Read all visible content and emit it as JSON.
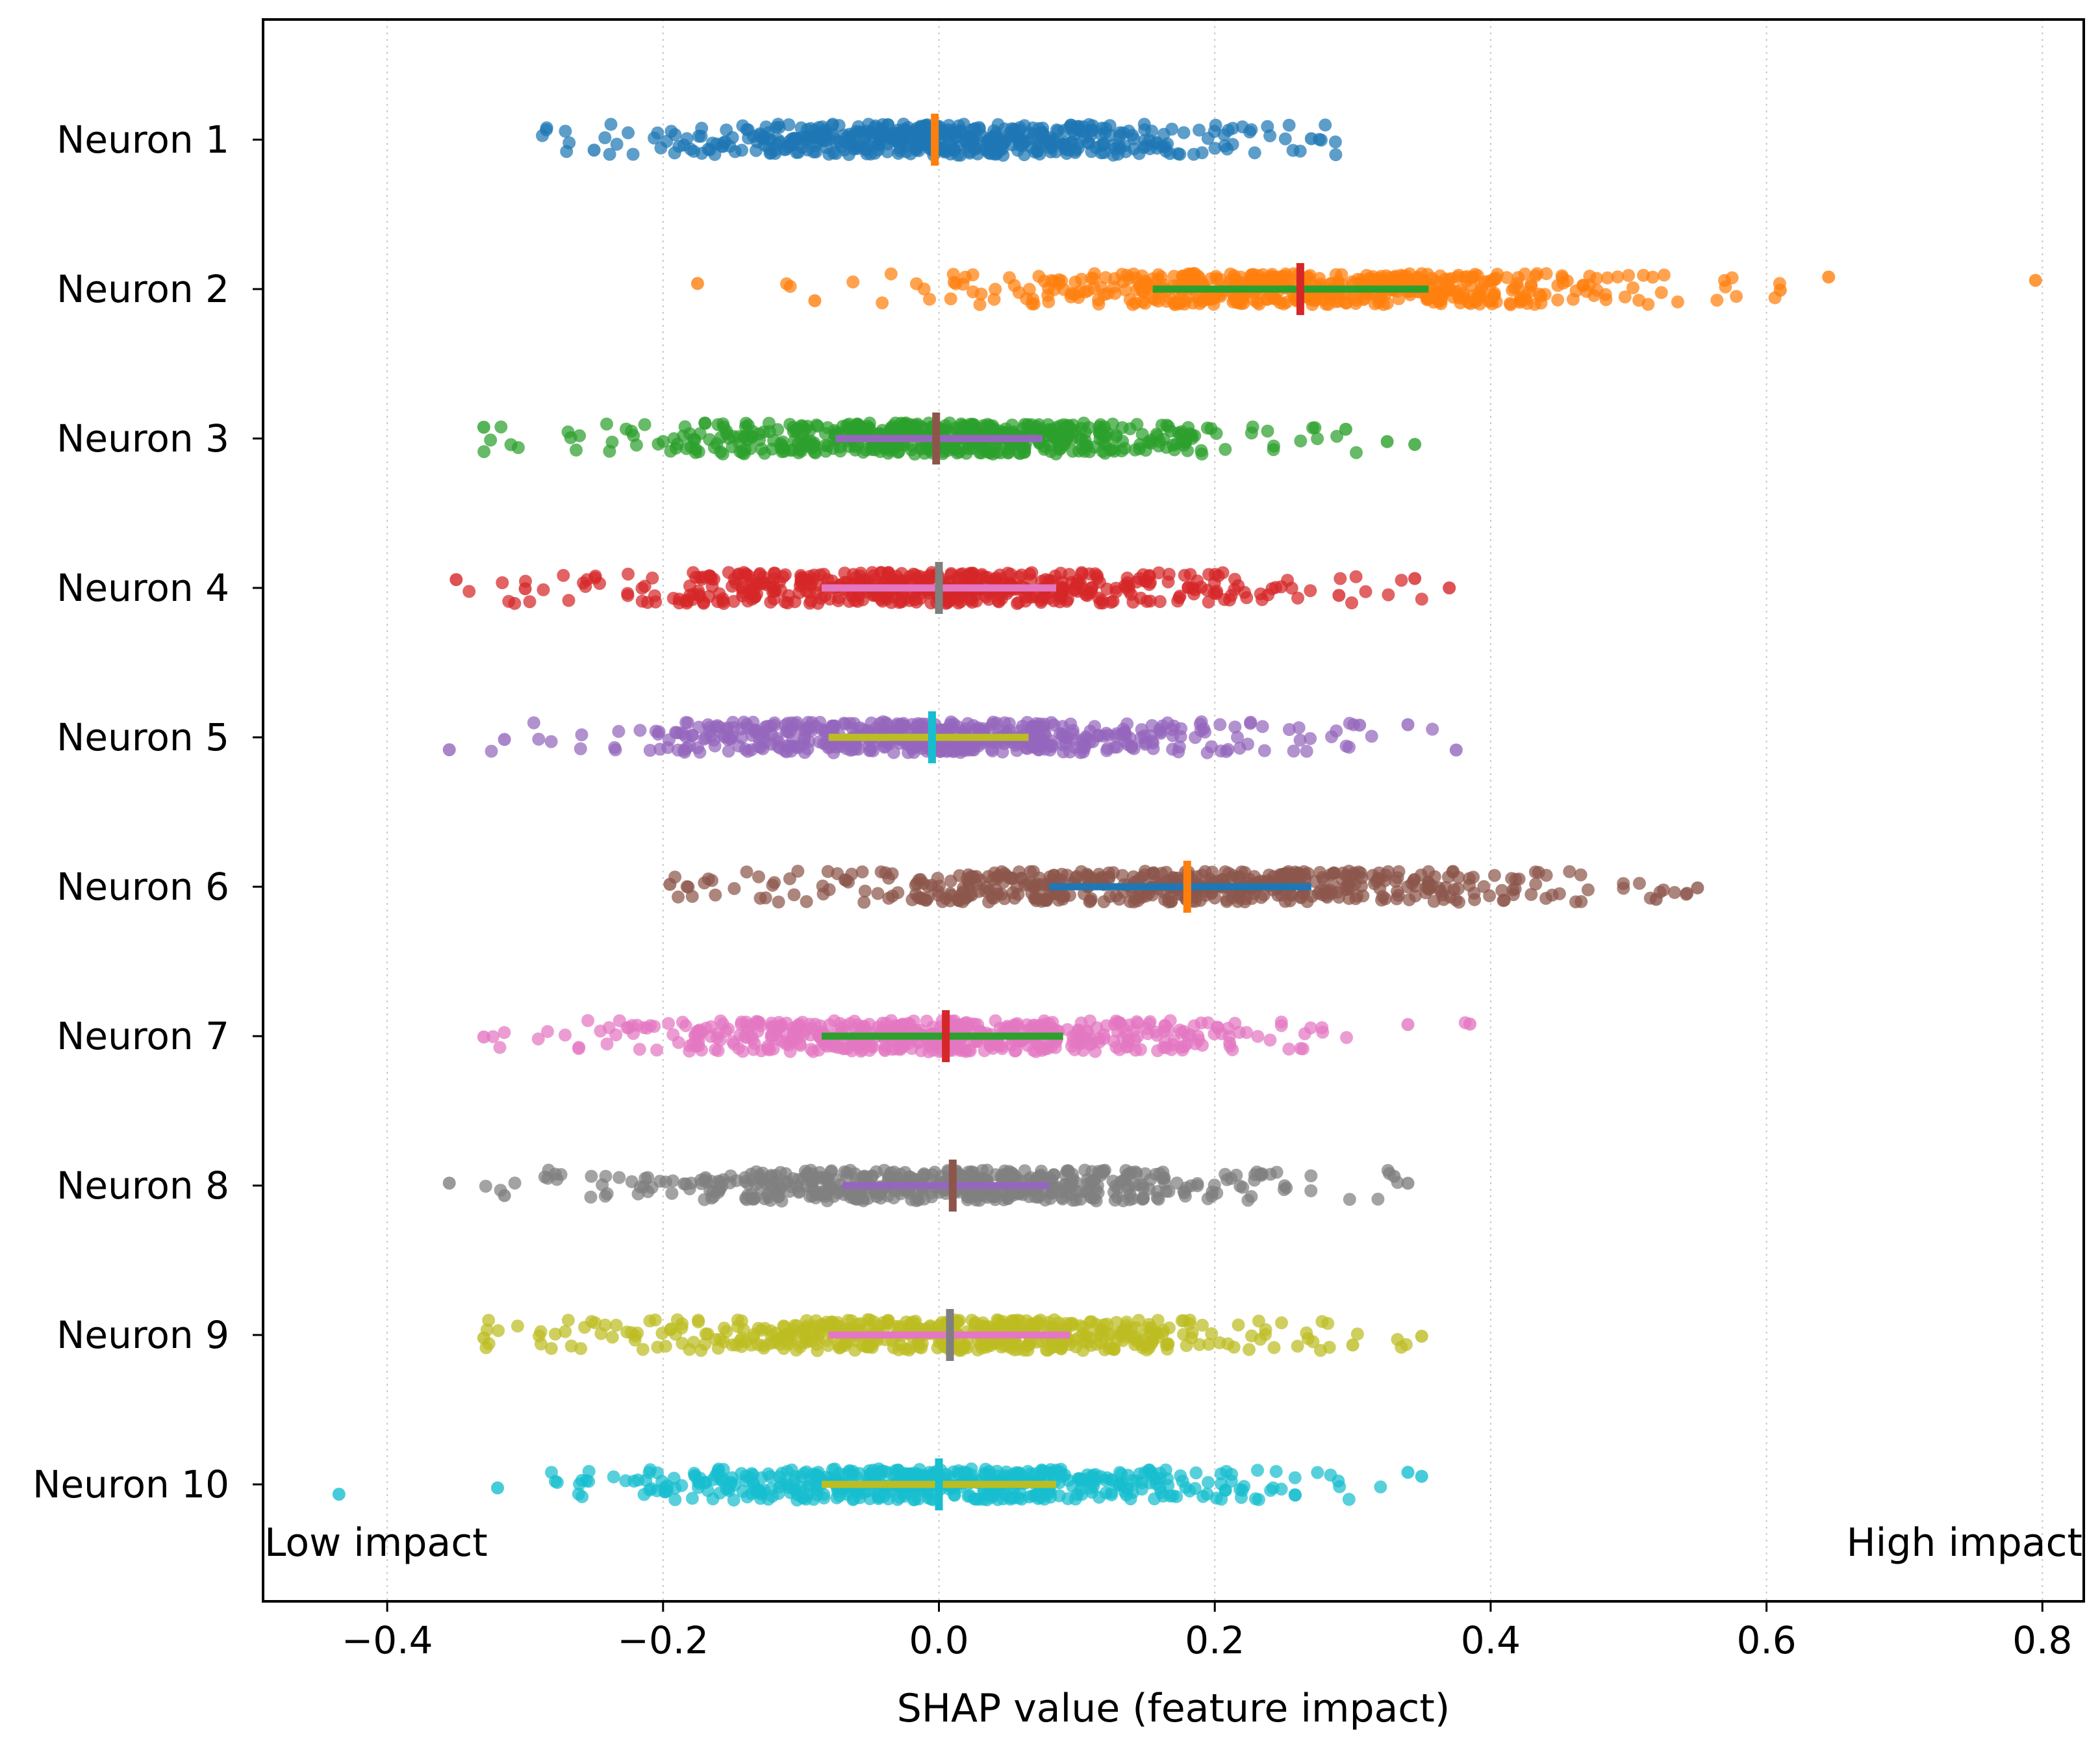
{
  "chart_data": {
    "type": "scatter",
    "subtype": "strip-plot",
    "xlabel": "SHAP value (feature impact)",
    "ylabel": "",
    "xlim": [
      -0.49,
      0.83
    ],
    "x_ticks": [
      -0.4,
      -0.2,
      0.0,
      0.2,
      0.4,
      0.6,
      0.8
    ],
    "x_tick_labels": [
      "−0.4",
      "−0.2",
      "0.0",
      "0.2",
      "0.4",
      "0.6",
      "0.8"
    ],
    "grid": "vertical-dotted",
    "annotations": {
      "left": "Low impact",
      "right": "High impact"
    },
    "categories": [
      "Neuron 1",
      "Neuron 2",
      "Neuron 3",
      "Neuron 4",
      "Neuron 5",
      "Neuron 6",
      "Neuron 7",
      "Neuron 8",
      "Neuron 9",
      "Neuron 10"
    ],
    "series": [
      {
        "dot_color": "#1f77b4",
        "min": -0.29,
        "max": 0.29,
        "center": -0.003,
        "spread": 0.11,
        "mean": -0.003,
        "mean_color": "#ff7f0e",
        "iqr": null,
        "iqr_color": null,
        "outliers": [
          -0.25,
          0.27
        ]
      },
      {
        "dot_color": "#ff7f0e",
        "min": -0.175,
        "max": 0.795,
        "center": 0.26,
        "spread": 0.13,
        "mean": 0.262,
        "mean_color": "#d62728",
        "iqr": [
          0.155,
          0.355
        ],
        "iqr_color": "#2ca02c",
        "outliers": [
          -0.175,
          -0.09,
          0.61,
          0.645,
          0.795
        ]
      },
      {
        "dot_color": "#2ca02c",
        "min": -0.33,
        "max": 0.35,
        "center": 0.0,
        "spread": 0.11,
        "mean": -0.002,
        "mean_color": "#8c564b",
        "iqr": [
          -0.075,
          0.075
        ],
        "iqr_color": "#9467bd",
        "outliers": [
          -0.33,
          0.295,
          0.325,
          0.345
        ]
      },
      {
        "dot_color": "#d62728",
        "min": -0.35,
        "max": 0.37,
        "center": 0.0,
        "spread": 0.12,
        "mean": 0.0,
        "mean_color": "#7f7f7f",
        "iqr": [
          -0.085,
          0.085
        ],
        "iqr_color": "#e377c2",
        "outliers": [
          -0.35,
          -0.3,
          0.29,
          0.345,
          0.37
        ]
      },
      {
        "dot_color": "#9467bd",
        "min": -0.355,
        "max": 0.375,
        "center": 0.0,
        "spread": 0.12,
        "mean": -0.005,
        "mean_color": "#17becf",
        "iqr": [
          -0.08,
          0.065
        ],
        "iqr_color": "#bcbd22",
        "outliers": [
          -0.355,
          -0.315,
          0.305,
          0.34,
          0.375
        ]
      },
      {
        "dot_color": "#8c564b",
        "min": -0.195,
        "max": 0.55,
        "center": 0.175,
        "spread": 0.14,
        "mean": 0.18,
        "mean_color": "#ff7f0e",
        "iqr": [
          0.08,
          0.27
        ],
        "iqr_color": "#1f77b4",
        "outliers": [
          -0.195,
          0.52,
          0.55
        ]
      },
      {
        "dot_color": "#e377c2",
        "min": -0.33,
        "max": 0.385,
        "center": 0.0,
        "spread": 0.12,
        "mean": 0.005,
        "mean_color": "#d62728",
        "iqr": [
          -0.085,
          0.09
        ],
        "iqr_color": "#2ca02c",
        "outliers": [
          -0.33,
          0.34,
          0.385
        ]
      },
      {
        "dot_color": "#7f7f7f",
        "min": -0.355,
        "max": 0.34,
        "center": 0.0,
        "spread": 0.12,
        "mean": 0.01,
        "mean_color": "#8c564b",
        "iqr": [
          -0.07,
          0.08
        ],
        "iqr_color": "#9467bd",
        "outliers": [
          -0.355,
          -0.315,
          0.33,
          0.34
        ]
      },
      {
        "dot_color": "#bcbd22",
        "min": -0.33,
        "max": 0.35,
        "center": 0.0,
        "spread": 0.12,
        "mean": 0.008,
        "mean_color": "#7f7f7f",
        "iqr": [
          -0.08,
          0.095
        ],
        "iqr_color": "#e377c2",
        "outliers": [
          -0.33,
          0.3,
          0.35
        ]
      },
      {
        "dot_color": "#17becf",
        "min": -0.435,
        "max": 0.35,
        "center": 0.0,
        "spread": 0.12,
        "mean": 0.0,
        "mean_color": "#17becf",
        "iqr": [
          -0.085,
          0.085
        ],
        "iqr_color": "#bcbd22",
        "outliers": [
          -0.435,
          -0.32,
          0.34,
          0.35
        ]
      }
    ],
    "points_per_series": 520
  }
}
